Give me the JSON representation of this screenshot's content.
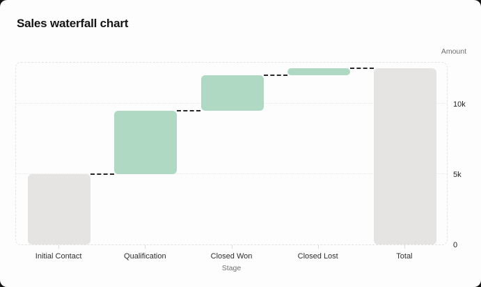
{
  "header": {
    "title": "Sales waterfall chart"
  },
  "chart_data": {
    "type": "bar",
    "subtype": "waterfall",
    "title": "Sales waterfall chart",
    "xlabel": "Stage",
    "ylabel": "Amount",
    "categories": [
      "Initial Contact",
      "Qualification",
      "Closed Won",
      "Closed Lost",
      "Total"
    ],
    "values": [
      5000,
      4500,
      2500,
      500,
      12500
    ],
    "kinds": [
      "start",
      "increase",
      "increase",
      "increase",
      "total"
    ],
    "cumulative": [
      [
        0,
        5000
      ],
      [
        5000,
        9500
      ],
      [
        9500,
        12000
      ],
      [
        12000,
        12500
      ],
      [
        0,
        12500
      ]
    ],
    "bar_colors": [
      "#e5e4e2",
      "#b0d9c3",
      "#b0d9c3",
      "#b0d9c3",
      "#e5e4e2"
    ],
    "connector_levels": [
      5000,
      9500,
      12000,
      12500
    ],
    "y_ticks": [
      {
        "label": "0",
        "value": 0
      },
      {
        "label": "5k",
        "value": 5000
      },
      {
        "label": "10k",
        "value": 10000
      }
    ],
    "ylim": [
      0,
      13000
    ],
    "grid": true,
    "legend": "none",
    "colors": {
      "increase": "#b0d9c3",
      "total": "#e5e4e2",
      "connector": "#262626",
      "grid": "#e7e7e5",
      "plot_border": "#e3e3e1",
      "background": "#fdfdfd"
    }
  }
}
